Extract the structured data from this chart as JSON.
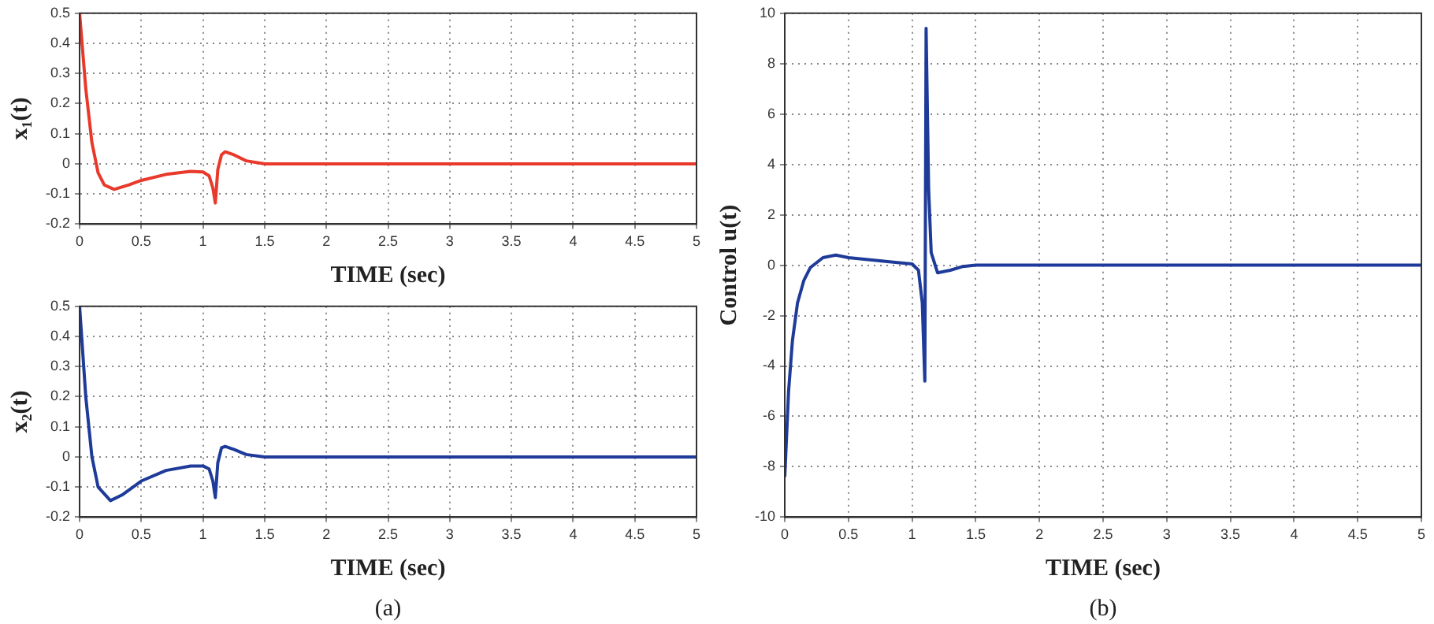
{
  "chart_data": [
    {
      "type": "line",
      "xlabel": "TIME (sec)",
      "ylabel": "x₁(t)",
      "xlim": [
        0,
        5
      ],
      "ylim": [
        -0.2,
        0.5
      ],
      "xticks": [
        0,
        0.5,
        1,
        1.5,
        2,
        2.5,
        3,
        3.5,
        4,
        4.5,
        5
      ],
      "yticks": [
        -0.2,
        -0.1,
        0,
        0.1,
        0.2,
        0.3,
        0.4,
        0.5
      ],
      "grid": true,
      "legend": false,
      "marker": "none",
      "line_style": "solid",
      "series": [
        {
          "color": "#e8392a",
          "x": [
            0,
            0.05,
            0.1,
            0.15,
            0.2,
            0.28,
            0.4,
            0.5,
            0.7,
            0.9,
            1.0,
            1.05,
            1.08,
            1.1,
            1.12,
            1.15,
            1.18,
            1.25,
            1.35,
            1.5,
            2,
            5
          ],
          "values": [
            0.5,
            0.25,
            0.07,
            -0.03,
            -0.07,
            -0.085,
            -0.07,
            -0.055,
            -0.035,
            -0.025,
            -0.027,
            -0.04,
            -0.08,
            -0.13,
            -0.02,
            0.03,
            0.04,
            0.03,
            0.01,
            0,
            0,
            0
          ]
        }
      ]
    },
    {
      "type": "line",
      "xlabel": "TIME (sec)",
      "ylabel": "x₂(t)",
      "xlim": [
        0,
        5
      ],
      "ylim": [
        -0.2,
        0.5
      ],
      "xticks": [
        0,
        0.5,
        1,
        1.5,
        2,
        2.5,
        3,
        3.5,
        4,
        4.5,
        5
      ],
      "yticks": [
        -0.2,
        -0.1,
        0,
        0.1,
        0.2,
        0.3,
        0.4,
        0.5
      ],
      "grid": true,
      "legend": false,
      "marker": "none",
      "line_style": "solid",
      "annotations": [
        "(a)"
      ],
      "series": [
        {
          "color": "#1f3b99",
          "x": [
            0,
            0.05,
            0.1,
            0.15,
            0.25,
            0.35,
            0.5,
            0.7,
            0.9,
            1.0,
            1.05,
            1.08,
            1.1,
            1.12,
            1.15,
            1.18,
            1.25,
            1.35,
            1.5,
            5
          ],
          "values": [
            0.5,
            0.2,
            0,
            -0.1,
            -0.145,
            -0.125,
            -0.08,
            -0.045,
            -0.03,
            -0.03,
            -0.04,
            -0.08,
            -0.135,
            -0.02,
            0.03,
            0.035,
            0.025,
            0.008,
            0,
            0
          ]
        }
      ]
    },
    {
      "type": "line",
      "xlabel": "TIME (sec)",
      "ylabel": "Control u(t)",
      "xlim": [
        0,
        5
      ],
      "ylim": [
        -10,
        10
      ],
      "xticks": [
        0,
        0.5,
        1,
        1.5,
        2,
        2.5,
        3,
        3.5,
        4,
        4.5,
        5
      ],
      "yticks": [
        -10,
        -8,
        -6,
        -4,
        -2,
        0,
        2,
        4,
        6,
        8,
        10
      ],
      "grid": true,
      "legend": false,
      "marker": "none",
      "line_style": "solid",
      "annotations": [
        "(b)"
      ],
      "series": [
        {
          "color": "#1f3b99",
          "x": [
            0,
            0.03,
            0.06,
            0.1,
            0.15,
            0.2,
            0.3,
            0.4,
            0.5,
            0.7,
            0.9,
            1.0,
            1.05,
            1.08,
            1.1,
            1.11,
            1.13,
            1.15,
            1.2,
            1.3,
            1.4,
            1.5,
            5
          ],
          "values": [
            -8.4,
            -5,
            -3,
            -1.5,
            -0.6,
            -0.1,
            0.3,
            0.4,
            0.3,
            0.2,
            0.1,
            0.05,
            -0.2,
            -1.5,
            -4.6,
            9.4,
            3,
            0.5,
            -0.3,
            -0.2,
            -0.05,
            0,
            0
          ]
        }
      ]
    }
  ]
}
